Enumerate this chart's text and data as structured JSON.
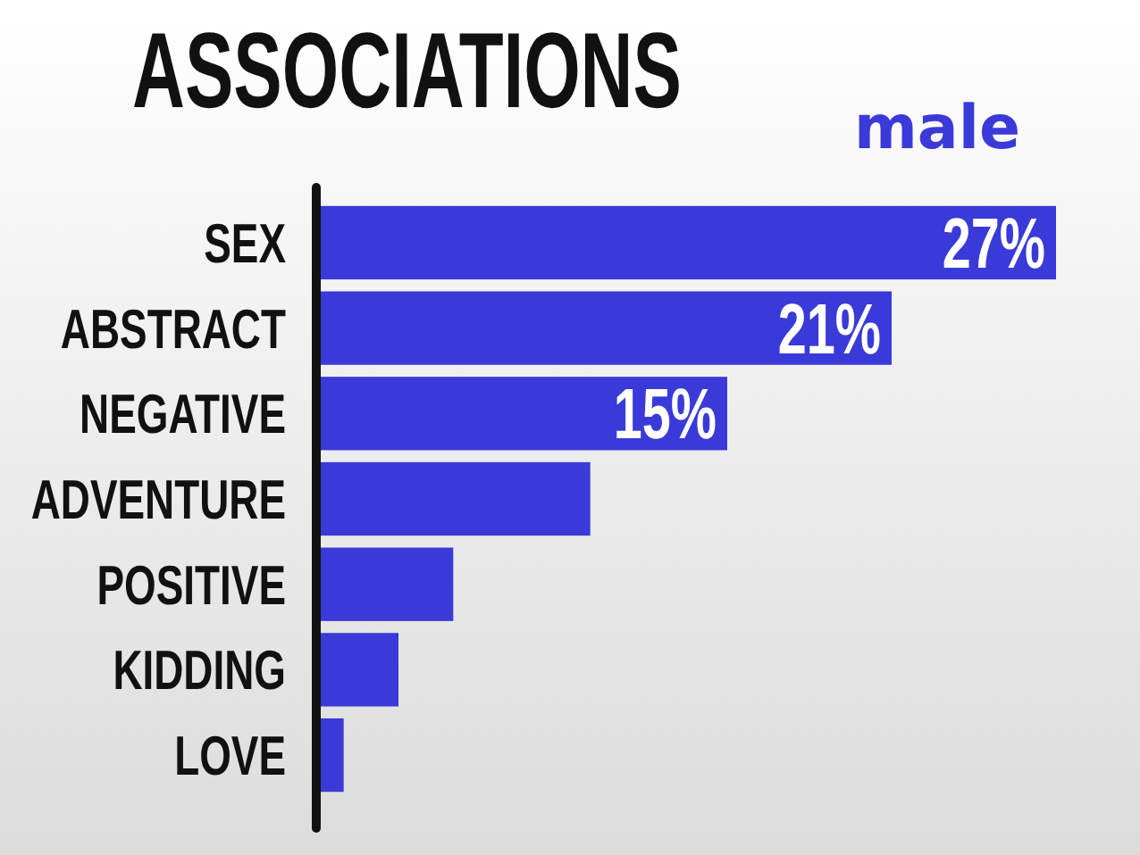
{
  "chart_data": {
    "type": "bar",
    "orientation": "horizontal",
    "title": "ASSOCIATIONS",
    "subtitle": "male",
    "categories": [
      "SEX",
      "ABSTRACT",
      "NEGATIVE",
      "ADVENTURE",
      "POSITIVE",
      "KIDDING",
      "LOVE"
    ],
    "values": [
      27,
      21,
      15,
      10,
      5,
      3,
      1
    ],
    "value_labels": [
      "27%",
      "21%",
      "15%",
      null,
      null,
      null,
      null
    ],
    "color": "#3a3ad8"
  }
}
